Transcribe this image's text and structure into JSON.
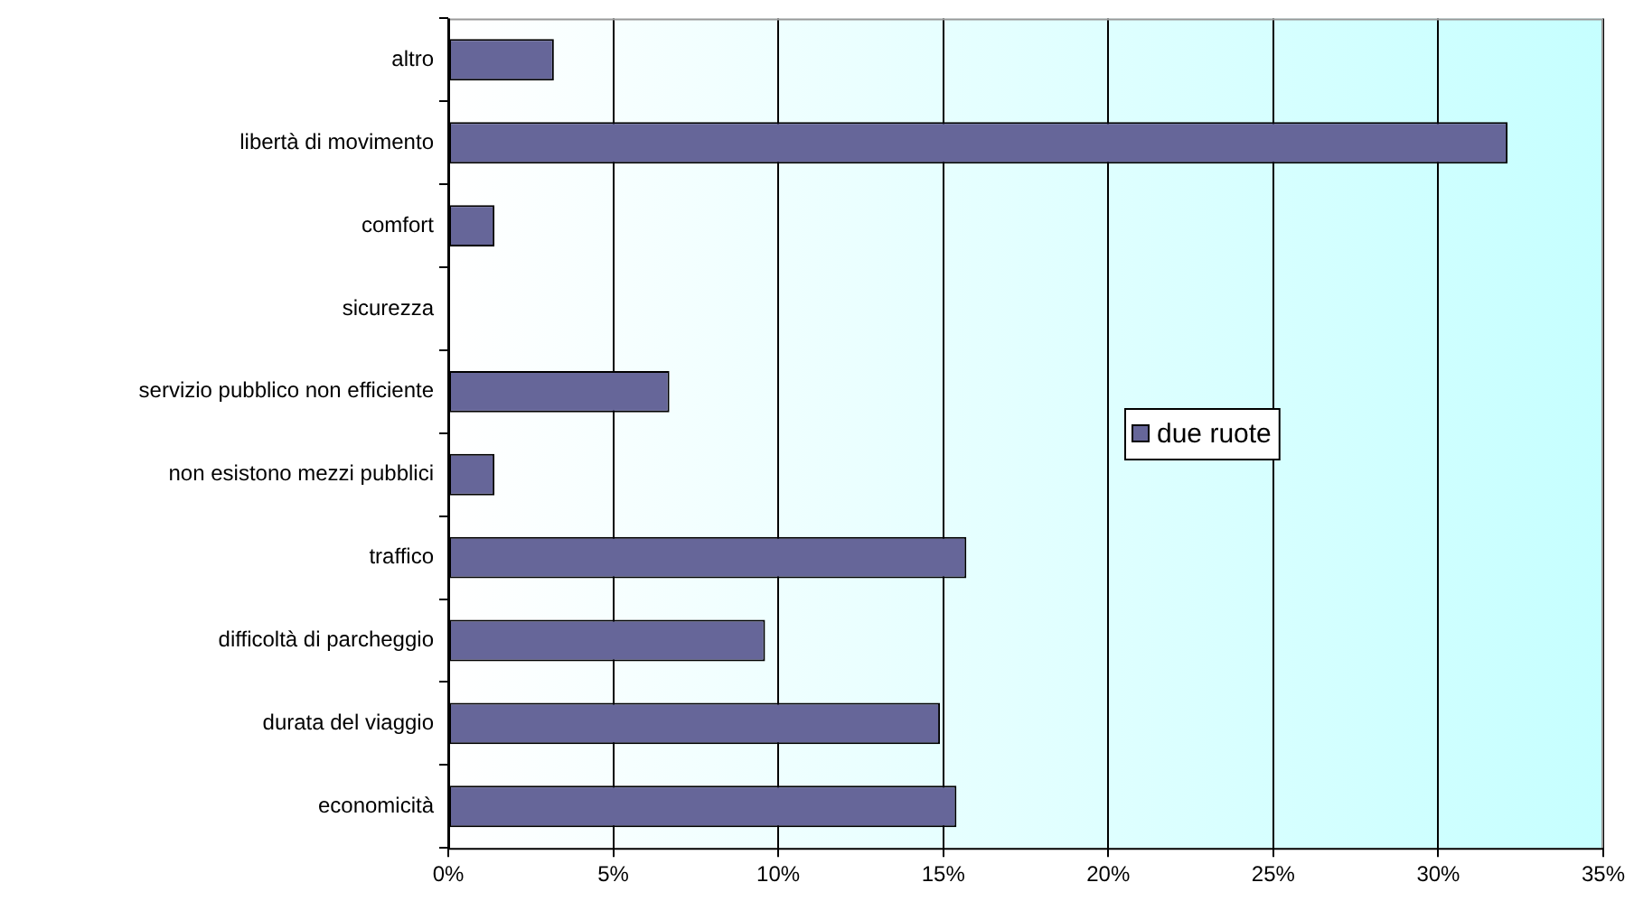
{
  "chart_data": {
    "type": "bar",
    "orientation": "horizontal",
    "categories": [
      "altro",
      "libertà di movimento",
      "comfort",
      "sicurezza",
      "servizio pubblico non efficiente",
      "non esistono mezzi pubblici",
      "traffico",
      "difficoltà di parcheggio",
      "durata del viaggio",
      "economicità"
    ],
    "series": [
      {
        "name": "due ruote",
        "color": "#666699",
        "values": [
          3.2,
          32.1,
          1.4,
          0,
          6.7,
          1.4,
          15.7,
          9.6,
          14.9,
          15.4
        ]
      }
    ],
    "xlim": [
      0,
      35
    ],
    "xticks": [
      {
        "value": 0,
        "label": "0%"
      },
      {
        "value": 5,
        "label": "5%"
      },
      {
        "value": 10,
        "label": "10%"
      },
      {
        "value": 15,
        "label": "15%"
      },
      {
        "value": 20,
        "label": "20%"
      },
      {
        "value": 25,
        "label": "25%"
      },
      {
        "value": 30,
        "label": "30%"
      },
      {
        "value": 35,
        "label": "35%"
      }
    ],
    "grid": "x",
    "legend": "right"
  }
}
